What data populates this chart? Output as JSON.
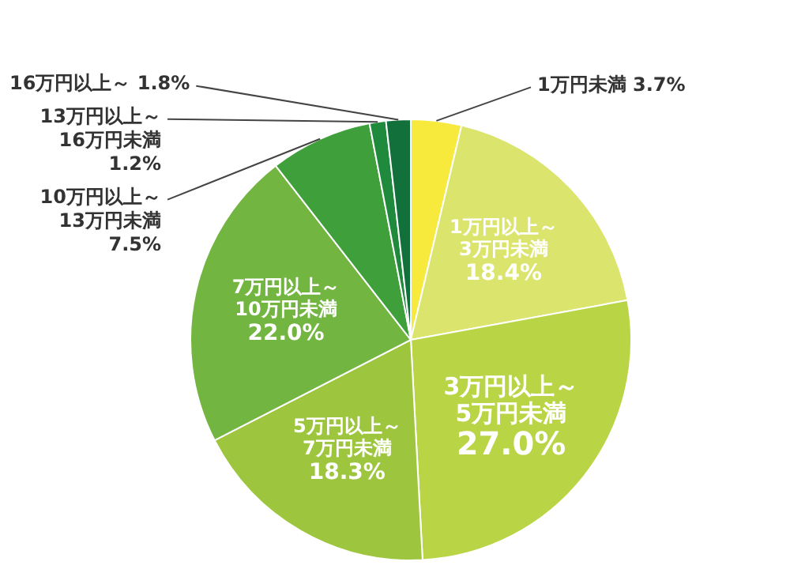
{
  "chart_data": {
    "type": "pie",
    "categories": [
      "1万円未満",
      "1万円以上～3万円未満",
      "3万円以上～5万円未満",
      "5万円以上～7万円未満",
      "7万円以上～10万円未満",
      "10万円以上～13万円未満",
      "13万円以上～16万円未満",
      "16万円以上～"
    ],
    "values": [
      3.7,
      18.4,
      27.0,
      18.3,
      22.0,
      7.5,
      1.2,
      1.8
    ],
    "value_labels": [
      "3.7%",
      "18.4%",
      "27.0%",
      "18.3%",
      "22.0%",
      "7.5%",
      "1.2%",
      "1.8%"
    ],
    "colors": [
      "#f7ea3c",
      "#dbe46c",
      "#b9d444",
      "#9dc63e",
      "#72b540",
      "#3f9f3b",
      "#1f8a3b",
      "#12703b"
    ],
    "legend": false
  }
}
